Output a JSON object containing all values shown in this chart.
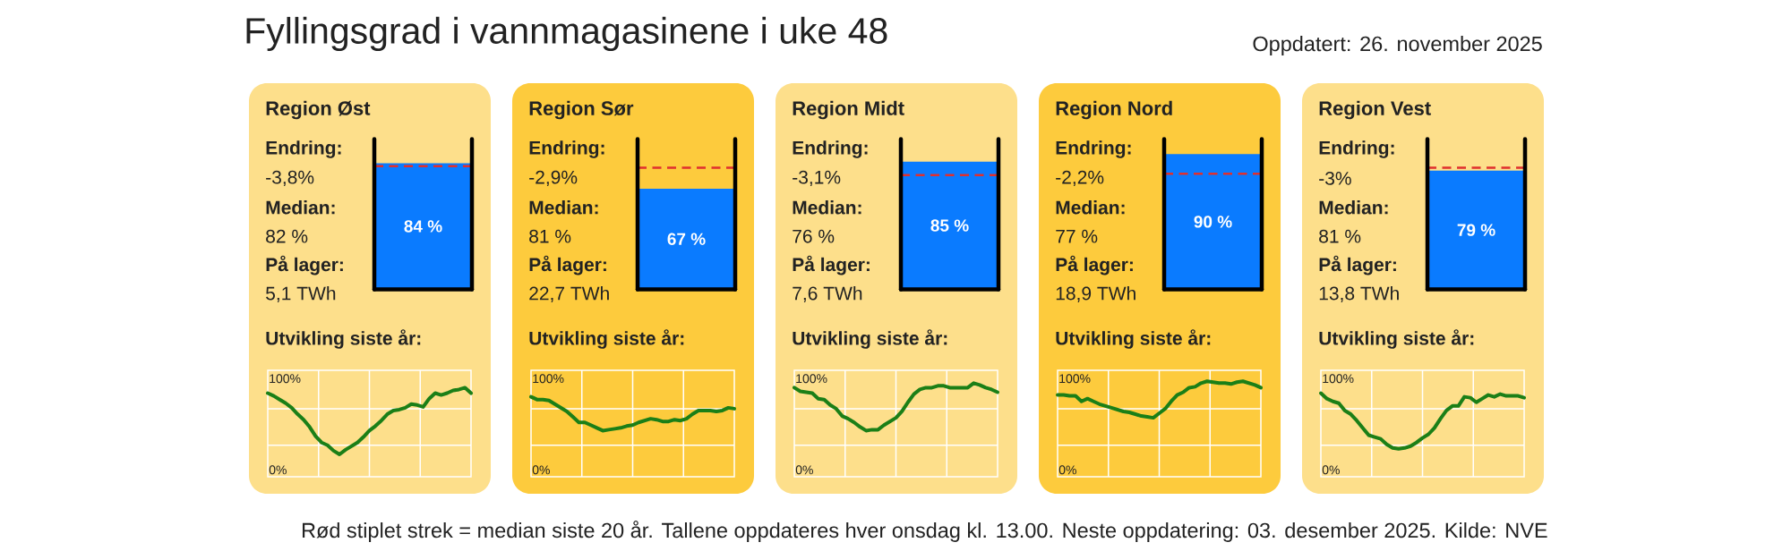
{
  "chart_data": [
    {
      "type": "other",
      "title": "Fyllingsgrad i vannmagasinene i uke 48",
      "annotations": [
        "Oppdatert: 26. november 2025",
        "Rød stiplet strek = median siste 20 år. Tallene oppdateres hver onsdag kl. 13.00. Neste oppdatering: 03. desember 2025. Kilde: NVE"
      ]
    },
    {
      "type": "bar",
      "title": "Region Øst",
      "categories": [
        null
      ],
      "values": [
        84
      ],
      "value_labels": [
        "84 %"
      ],
      "color": "#0a7bff",
      "ylim": [
        0,
        100
      ],
      "tick_labels": false,
      "ref_lines": [
        {
          "axis": "y",
          "value": 82,
          "color": "#e0302e",
          "line_style": "dashed"
        }
      ],
      "annotations": [
        "Endring:",
        "-3,8%",
        "Median:",
        "82 %",
        "På lager:",
        "5,1 TWh"
      ]
    },
    {
      "type": "line",
      "title": "Utvikling siste år:",
      "categories": [
        null,
        null,
        null,
        null,
        null,
        null,
        null,
        null,
        null,
        null,
        null,
        null,
        null,
        null,
        null,
        null,
        null,
        null,
        null,
        null,
        null,
        null,
        null,
        null,
        null,
        null,
        null,
        null,
        null,
        null,
        null,
        null,
        null,
        null,
        null
      ],
      "values": [
        84,
        81,
        77,
        73,
        68,
        61,
        55,
        47,
        37,
        30,
        27,
        21,
        17,
        22,
        26,
        30,
        36,
        43,
        48,
        54,
        61,
        65,
        66,
        68,
        72,
        71,
        69,
        78,
        84,
        82,
        84,
        87,
        88,
        90,
        84
      ],
      "color": "#1b7f17",
      "ylim": [
        -7.5,
        109
      ],
      "yticks": [
        {
          "value": 0,
          "label": "0%"
        },
        {
          "value": 27,
          "label": null
        },
        {
          "value": 67,
          "label": null
        },
        {
          "value": 100,
          "label": "100%"
        }
      ],
      "grid": true
    },
    {
      "type": "bar",
      "title": "Region Sør",
      "categories": [
        null
      ],
      "values": [
        67
      ],
      "value_labels": [
        "67 %"
      ],
      "color": "#0a7bff",
      "ylim": [
        0,
        100
      ],
      "tick_labels": false,
      "ref_lines": [
        {
          "axis": "y",
          "value": 81,
          "color": "#e0302e",
          "line_style": "dashed"
        }
      ],
      "annotations": [
        "Endring:",
        "-2,9%",
        "Median:",
        "81 %",
        "På lager:",
        "22,7 TWh"
      ]
    },
    {
      "type": "line",
      "title": "Utvikling siste år:",
      "categories": [
        null,
        null,
        null,
        null,
        null,
        null,
        null,
        null,
        null,
        null,
        null,
        null,
        null,
        null,
        null,
        null,
        null,
        null,
        null,
        null,
        null,
        null,
        null,
        null,
        null,
        null,
        null,
        null,
        null,
        null,
        null,
        null,
        null,
        null,
        null
      ],
      "values": [
        80,
        77,
        77,
        76,
        72,
        68,
        64,
        58,
        52,
        52,
        49,
        46,
        43,
        44,
        45,
        46,
        48,
        49,
        52,
        54,
        56,
        55,
        53,
        53,
        55,
        54,
        56,
        61,
        65,
        65,
        65,
        64,
        65,
        68,
        67
      ],
      "color": "#1b7f17",
      "ylim": [
        -7.5,
        109
      ],
      "yticks": [
        {
          "value": 0,
          "label": "0%"
        },
        {
          "value": 27,
          "label": null
        },
        {
          "value": 67,
          "label": null
        },
        {
          "value": 100,
          "label": "100%"
        }
      ],
      "grid": true
    },
    {
      "type": "bar",
      "title": "Region Midt",
      "categories": [
        null
      ],
      "values": [
        85
      ],
      "value_labels": [
        "85 %"
      ],
      "color": "#0a7bff",
      "ylim": [
        0,
        100
      ],
      "tick_labels": false,
      "ref_lines": [
        {
          "axis": "y",
          "value": 76,
          "color": "#e0302e",
          "line_style": "dashed"
        }
      ],
      "annotations": [
        "Endring:",
        "-3,1%",
        "Median:",
        "76 %",
        "På lager:",
        "7,6 TWh"
      ]
    },
    {
      "type": "line",
      "title": "Utvikling siste år:",
      "categories": [
        null,
        null,
        null,
        null,
        null,
        null,
        null,
        null,
        null,
        null,
        null,
        null,
        null,
        null,
        null,
        null,
        null,
        null,
        null,
        null,
        null,
        null,
        null,
        null,
        null,
        null,
        null,
        null,
        null,
        null,
        null,
        null,
        null,
        null,
        null
      ],
      "values": [
        90,
        86,
        85,
        84,
        78,
        77,
        71,
        67,
        59,
        56,
        52,
        47,
        43,
        44,
        44,
        49,
        53,
        57,
        64,
        74,
        83,
        88,
        90,
        90,
        92,
        92,
        90,
        90,
        90,
        90,
        95,
        93,
        90,
        88,
        85
      ],
      "color": "#1b7f17",
      "ylim": [
        -7.5,
        109
      ],
      "yticks": [
        {
          "value": 0,
          "label": "0%"
        },
        {
          "value": 27,
          "label": null
        },
        {
          "value": 67,
          "label": null
        },
        {
          "value": 100,
          "label": "100%"
        }
      ],
      "grid": true
    },
    {
      "type": "bar",
      "title": "Region Nord",
      "categories": [
        null
      ],
      "values": [
        90
      ],
      "value_labels": [
        "90 %"
      ],
      "color": "#0a7bff",
      "ylim": [
        0,
        100
      ],
      "tick_labels": false,
      "ref_lines": [
        {
          "axis": "y",
          "value": 77,
          "color": "#e0302e",
          "line_style": "dashed"
        }
      ],
      "annotations": [
        "Endring:",
        "-2,2%",
        "Median:",
        "77 %",
        "På lager:",
        "18,9 TWh"
      ]
    },
    {
      "type": "line",
      "title": "Utvikling siste år:",
      "categories": [
        null,
        null,
        null,
        null,
        null,
        null,
        null,
        null,
        null,
        null,
        null,
        null,
        null,
        null,
        null,
        null,
        null,
        null,
        null,
        null,
        null,
        null,
        null,
        null,
        null,
        null,
        null,
        null,
        null,
        null,
        null,
        null,
        null,
        null,
        null
      ],
      "values": [
        82,
        82,
        81,
        81,
        75,
        78,
        75,
        72,
        70,
        68,
        66,
        64,
        63,
        61,
        59,
        58,
        57,
        62,
        67,
        75,
        82,
        85,
        90,
        91,
        95,
        97,
        96,
        95,
        95,
        94,
        96,
        97,
        95,
        93,
        90
      ],
      "color": "#1b7f17",
      "ylim": [
        -7.5,
        109
      ],
      "yticks": [
        {
          "value": 0,
          "label": "0%"
        },
        {
          "value": 27,
          "label": null
        },
        {
          "value": 67,
          "label": null
        },
        {
          "value": 100,
          "label": "100%"
        }
      ],
      "grid": true
    },
    {
      "type": "bar",
      "title": "Region Vest",
      "categories": [
        null
      ],
      "values": [
        79
      ],
      "value_labels": [
        "79 %"
      ],
      "color": "#0a7bff",
      "ylim": [
        0,
        100
      ],
      "tick_labels": false,
      "ref_lines": [
        {
          "axis": "y",
          "value": 81,
          "color": "#e0302e",
          "line_style": "dashed"
        }
      ],
      "annotations": [
        "Endring:",
        "-3%",
        "Median:",
        "81 %",
        "På lager:",
        "13,8 TWh"
      ]
    },
    {
      "type": "line",
      "title": "Utvikling siste år:",
      "categories": [
        null,
        null,
        null,
        null,
        null,
        null,
        null,
        null,
        null,
        null,
        null,
        null,
        null,
        null,
        null,
        null,
        null,
        null,
        null,
        null,
        null,
        null,
        null,
        null,
        null,
        null,
        null,
        null,
        null,
        null,
        null,
        null,
        null,
        null,
        null
      ],
      "values": [
        84,
        78,
        75,
        73,
        65,
        61,
        54,
        46,
        38,
        36,
        34,
        28,
        24,
        23,
        24,
        26,
        30,
        35,
        39,
        46,
        56,
        65,
        70,
        70,
        80,
        79,
        74,
        78,
        82,
        80,
        83,
        81,
        81,
        81,
        79
      ],
      "color": "#1b7f17",
      "ylim": [
        -7.5,
        109
      ],
      "yticks": [
        {
          "value": 0,
          "label": "0%"
        },
        {
          "value": 27,
          "label": null
        },
        {
          "value": 67,
          "label": null
        },
        {
          "value": 100,
          "label": "100%"
        }
      ],
      "grid": true
    }
  ]
}
